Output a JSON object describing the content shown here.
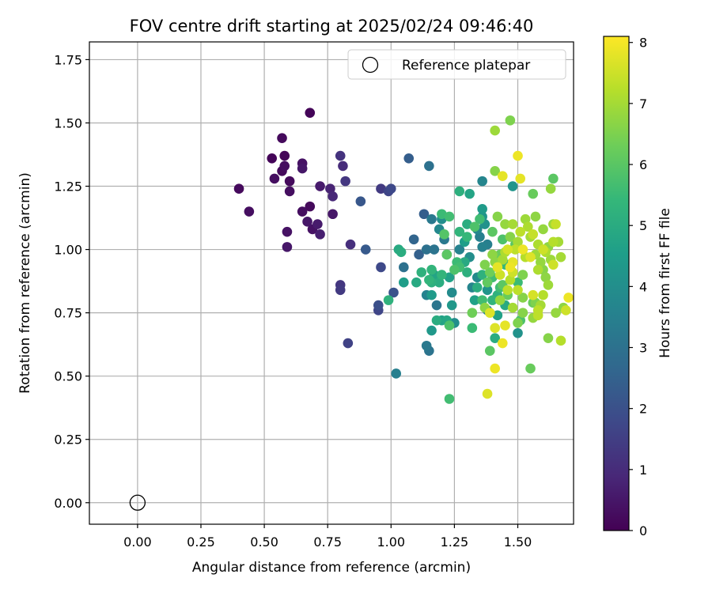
{
  "chart_data": {
    "type": "scatter",
    "title": "FOV centre drift starting at 2025/02/24 09:46:40",
    "xlabel": "Angular distance from reference (arcmin)",
    "ylabel": "Rotation from reference (arcmin)",
    "xlim": [
      -0.19,
      1.72
    ],
    "ylim": [
      -0.085,
      1.82
    ],
    "xticks": [
      "0.00",
      "0.25",
      "0.50",
      "0.75",
      "1.00",
      "1.25",
      "1.50"
    ],
    "yticks": [
      "0.00",
      "0.25",
      "0.50",
      "0.75",
      "1.00",
      "1.25",
      "1.50",
      "1.75"
    ],
    "grid": true,
    "legend": {
      "placement": "top-right",
      "entries": [
        "Reference platepar"
      ]
    },
    "reference_point": {
      "label": "Reference platepar",
      "x": 0.0,
      "y": 0.0,
      "marker": "open-circle"
    },
    "colorbar": {
      "label": "Hours from first FF file",
      "min": 0,
      "max": 8.1,
      "ticks": [
        "0",
        "1",
        "2",
        "3",
        "4",
        "5",
        "6",
        "7",
        "8"
      ],
      "colormap": "viridis",
      "colors": [
        "#440154",
        "#482878",
        "#3e4989",
        "#31688e",
        "#26828e",
        "#1f9e89",
        "#35b779",
        "#6ece58",
        "#b5de2b",
        "#fde725"
      ]
    },
    "series": [
      {
        "color_value": "hours",
        "points": [
          [
            0.4,
            1.24,
            0.2
          ],
          [
            0.44,
            1.15,
            0.3
          ],
          [
            0.57,
            1.44,
            0.2
          ],
          [
            0.53,
            1.36,
            0.1
          ],
          [
            0.58,
            1.37,
            0.1
          ],
          [
            0.58,
            1.33,
            0.3
          ],
          [
            0.57,
            1.31,
            0.2
          ],
          [
            0.6,
            1.27,
            0.2
          ],
          [
            0.54,
            1.28,
            0.3
          ],
          [
            0.6,
            1.23,
            0.3
          ],
          [
            0.65,
            1.34,
            0.4
          ],
          [
            0.65,
            1.32,
            0.5
          ],
          [
            0.68,
            1.54,
            0.1
          ],
          [
            0.72,
            1.25,
            0.6
          ],
          [
            0.76,
            1.24,
            0.8
          ],
          [
            0.77,
            1.21,
            0.9
          ],
          [
            0.65,
            1.15,
            0.3
          ],
          [
            0.68,
            1.17,
            0.2
          ],
          [
            0.67,
            1.11,
            0.5
          ],
          [
            0.69,
            1.08,
            0.4
          ],
          [
            0.71,
            1.1,
            0.6
          ],
          [
            0.72,
            1.06,
            0.7
          ],
          [
            0.77,
            1.14,
            0.5
          ],
          [
            0.59,
            1.07,
            0.4
          ],
          [
            0.59,
            1.01,
            0.5
          ],
          [
            0.8,
            1.37,
            1.2
          ],
          [
            0.81,
            1.33,
            1.0
          ],
          [
            0.82,
            1.27,
            1.3
          ],
          [
            0.84,
            1.02,
            1.1
          ],
          [
            0.8,
            0.86,
            1.3
          ],
          [
            0.8,
            0.84,
            1.4
          ],
          [
            0.83,
            0.63,
            1.6
          ],
          [
            0.88,
            1.19,
            2.2
          ],
          [
            0.9,
            1.0,
            2.3
          ],
          [
            0.96,
            1.24,
            1.4
          ],
          [
            0.99,
            1.23,
            1.7
          ],
          [
            1.0,
            1.24,
            1.8
          ],
          [
            0.96,
            0.93,
            1.8
          ],
          [
            0.95,
            0.78,
            2.0
          ],
          [
            0.95,
            0.76,
            1.7
          ],
          [
            1.01,
            0.83,
            2.1
          ],
          [
            1.02,
            0.51,
            3.5
          ],
          [
            1.03,
            1.0,
            4.9
          ],
          [
            1.04,
            0.99,
            5.0
          ],
          [
            1.05,
            0.93,
            3.0
          ],
          [
            1.07,
            1.36,
            2.4
          ],
          [
            1.09,
            1.04,
            2.6
          ],
          [
            1.11,
            0.98,
            2.5
          ],
          [
            1.13,
            1.14,
            2.4
          ],
          [
            1.14,
            1.0,
            3.0
          ],
          [
            1.15,
            1.33,
            3.0
          ],
          [
            1.16,
            1.12,
            3.3
          ],
          [
            1.17,
            1.0,
            3.1
          ],
          [
            1.18,
            0.78,
            3.2
          ],
          [
            1.19,
            1.08,
            3.8
          ],
          [
            1.2,
            1.12,
            4.0
          ],
          [
            1.21,
            1.04,
            3.3
          ],
          [
            1.22,
            0.98,
            3.6
          ],
          [
            1.14,
            0.82,
            3.6
          ],
          [
            1.15,
            0.6,
            3.1
          ],
          [
            1.14,
            0.62,
            3.3
          ],
          [
            1.16,
            0.68,
            4.3
          ],
          [
            1.2,
            0.72,
            4.6
          ],
          [
            1.22,
            0.72,
            4.8
          ],
          [
            1.25,
            0.71,
            4.0
          ],
          [
            1.24,
            0.83,
            3.9
          ],
          [
            1.24,
            0.78,
            4.3
          ],
          [
            1.23,
            0.89,
            4.6
          ],
          [
            1.26,
            0.95,
            5.5
          ],
          [
            1.27,
            1.0,
            3.6
          ],
          [
            1.27,
            1.23,
            5.1
          ],
          [
            1.29,
            0.95,
            4.9
          ],
          [
            1.29,
            1.03,
            4.5
          ],
          [
            1.3,
            1.1,
            5.0
          ],
          [
            1.31,
            1.22,
            4.7
          ],
          [
            1.31,
            0.97,
            4.0
          ],
          [
            1.32,
            0.85,
            3.7
          ],
          [
            1.32,
            0.69,
            5.5
          ],
          [
            1.34,
            0.89,
            3.9
          ],
          [
            1.34,
            1.08,
            3.8
          ],
          [
            1.35,
            1.05,
            3.5
          ],
          [
            1.36,
            1.01,
            3.6
          ],
          [
            1.36,
            1.27,
            3.7
          ],
          [
            1.36,
            1.16,
            4.4
          ],
          [
            1.36,
            1.13,
            4.2
          ],
          [
            1.37,
            1.1,
            4.1
          ],
          [
            1.38,
            1.02,
            3.5
          ],
          [
            1.38,
            0.84,
            4.2
          ],
          [
            1.38,
            0.76,
            3.5
          ],
          [
            1.39,
            0.6,
            6.0
          ],
          [
            1.4,
            0.89,
            5.6
          ],
          [
            1.4,
            0.8,
            5.3
          ],
          [
            1.41,
            0.65,
            5.0
          ],
          [
            1.42,
            0.74,
            4.6
          ],
          [
            1.42,
            0.82,
            5.2
          ],
          [
            1.43,
            0.85,
            5.6
          ],
          [
            1.44,
            0.86,
            6.0
          ],
          [
            1.45,
            0.78,
            4.9
          ],
          [
            1.45,
            0.94,
            5.3
          ],
          [
            1.43,
            0.98,
            6.2
          ],
          [
            1.46,
            0.94,
            5.4
          ],
          [
            1.44,
            1.04,
            5.8
          ],
          [
            1.47,
            1.05,
            6.6
          ],
          [
            1.48,
            1.25,
            4.2
          ],
          [
            1.49,
            1.02,
            6.0
          ],
          [
            1.5,
            0.87,
            5.5
          ],
          [
            1.5,
            0.67,
            4.1
          ],
          [
            1.51,
            0.72,
            5.8
          ],
          [
            1.5,
            0.71,
            6.5
          ],
          [
            1.52,
            0.81,
            6.6
          ],
          [
            1.55,
            0.53,
            6.2
          ],
          [
            1.56,
            0.73,
            6.8
          ],
          [
            1.57,
            0.79,
            6.5
          ],
          [
            1.58,
            0.76,
            7.3
          ],
          [
            1.59,
            0.78,
            7.0
          ],
          [
            1.6,
            0.82,
            7.2
          ],
          [
            1.62,
            0.86,
            6.9
          ],
          [
            1.62,
            0.65,
            6.6
          ],
          [
            1.64,
            0.94,
            7.5
          ],
          [
            1.65,
            0.75,
            6.8
          ],
          [
            1.67,
            0.97,
            7.0
          ],
          [
            1.67,
            0.64,
            7.2
          ],
          [
            1.68,
            0.77,
            6.7
          ],
          [
            1.69,
            0.76,
            7.5
          ],
          [
            1.7,
            0.81,
            7.9
          ],
          [
            1.2,
            0.9,
            5.3
          ],
          [
            1.19,
            0.87,
            5.0
          ],
          [
            1.16,
            0.87,
            5.1
          ],
          [
            1.16,
            0.92,
            5.3
          ],
          [
            1.22,
            0.98,
            6.0
          ],
          [
            1.25,
            0.92,
            5.8
          ],
          [
            1.27,
            0.93,
            5.6
          ],
          [
            1.3,
            0.91,
            5.1
          ],
          [
            1.33,
            0.8,
            4.6
          ],
          [
            1.34,
            0.85,
            5.0
          ],
          [
            1.36,
            0.9,
            5.2
          ],
          [
            1.37,
            0.94,
            6.5
          ],
          [
            1.38,
            0.87,
            6.1
          ],
          [
            1.39,
            0.91,
            6.3
          ],
          [
            1.4,
            0.98,
            6.7
          ],
          [
            1.41,
            0.95,
            6.7
          ],
          [
            1.42,
            0.93,
            7.8
          ],
          [
            1.43,
            0.9,
            7.5
          ],
          [
            1.44,
            0.96,
            7.0
          ],
          [
            1.45,
            0.99,
            7.1
          ],
          [
            1.46,
            1.0,
            7.6
          ],
          [
            1.47,
            0.93,
            7.9
          ],
          [
            1.48,
            0.95,
            7.8
          ],
          [
            1.49,
            1.0,
            7.3
          ],
          [
            1.5,
            1.03,
            7.0
          ],
          [
            1.51,
            1.07,
            7.3
          ],
          [
            1.52,
            1.0,
            7.9
          ],
          [
            1.53,
            0.97,
            7.2
          ],
          [
            1.54,
            1.09,
            7.1
          ],
          [
            1.55,
            1.05,
            7.0
          ],
          [
            1.56,
            1.06,
            7.4
          ],
          [
            1.57,
            0.98,
            6.9
          ],
          [
            1.58,
            1.02,
            7.1
          ],
          [
            1.59,
            0.95,
            6.8
          ],
          [
            1.6,
            1.0,
            7.5
          ],
          [
            1.61,
            0.99,
            7.1
          ],
          [
            1.62,
            1.01,
            6.7
          ],
          [
            1.63,
            0.96,
            6.9
          ],
          [
            1.64,
            1.03,
            7.2
          ],
          [
            1.65,
            1.1,
            7.4
          ],
          [
            1.66,
            1.03,
            7.0
          ],
          [
            1.41,
            1.47,
            6.9
          ],
          [
            1.47,
            1.51,
            6.5
          ],
          [
            1.5,
            1.37,
            7.9
          ],
          [
            1.51,
            1.28,
            7.8
          ],
          [
            1.44,
            1.29,
            7.8
          ],
          [
            1.41,
            1.31,
            6.6
          ],
          [
            1.56,
            1.22,
            6.2
          ],
          [
            1.63,
            1.24,
            6.8
          ],
          [
            1.64,
            1.28,
            6.0
          ],
          [
            1.41,
            0.69,
            7.7
          ],
          [
            1.44,
            0.63,
            7.9
          ],
          [
            1.45,
            0.7,
            7.8
          ],
          [
            1.41,
            0.53,
            7.9
          ],
          [
            1.38,
            0.43,
            7.7
          ],
          [
            1.23,
            0.41,
            5.6
          ],
          [
            1.23,
            0.7,
            5.8
          ],
          [
            1.18,
            0.72,
            5.0
          ],
          [
            1.16,
            0.82,
            4.4
          ],
          [
            1.17,
            0.9,
            4.7
          ],
          [
            1.15,
            0.88,
            5.3
          ],
          [
            1.12,
            0.91,
            5.2
          ],
          [
            1.1,
            0.87,
            4.9
          ],
          [
            1.05,
            0.87,
            4.5
          ],
          [
            0.99,
            0.8,
            5.2
          ],
          [
            1.32,
            0.75,
            6.3
          ],
          [
            1.36,
            0.8,
            5.6
          ],
          [
            1.37,
            0.77,
            6.7
          ],
          [
            1.39,
            0.75,
            7.7
          ],
          [
            1.43,
            0.8,
            6.8
          ],
          [
            1.46,
            0.82,
            6.2
          ],
          [
            1.48,
            0.77,
            7.0
          ],
          [
            1.52,
            0.75,
            6.6
          ],
          [
            1.56,
            0.79,
            6.2
          ],
          [
            1.58,
            0.74,
            7.3
          ],
          [
            1.56,
            0.82,
            7.6
          ],
          [
            1.6,
            0.92,
            6.6
          ],
          [
            1.61,
            0.89,
            6.7
          ],
          [
            1.58,
            0.92,
            7.1
          ],
          [
            1.55,
            0.97,
            7.7
          ],
          [
            1.52,
            0.9,
            6.5
          ],
          [
            1.5,
            0.84,
            7.3
          ],
          [
            1.48,
            0.91,
            7.5
          ],
          [
            1.47,
            0.88,
            7.2
          ],
          [
            1.46,
            0.84,
            7.3
          ],
          [
            1.2,
            1.14,
            5.5
          ],
          [
            1.21,
            1.06,
            5.9
          ],
          [
            1.23,
            1.13,
            5.6
          ],
          [
            1.27,
            1.07,
            5.3
          ],
          [
            1.3,
            1.05,
            5.4
          ],
          [
            1.33,
            1.09,
            5.8
          ],
          [
            1.35,
            1.12,
            5.6
          ],
          [
            1.4,
            1.07,
            6.0
          ],
          [
            1.42,
            1.13,
            6.6
          ],
          [
            1.45,
            1.1,
            6.8
          ],
          [
            1.48,
            1.1,
            7.0
          ],
          [
            1.53,
            1.12,
            6.9
          ],
          [
            1.57,
            1.13,
            6.7
          ],
          [
            1.6,
            1.08,
            6.8
          ],
          [
            1.64,
            1.1,
            6.9
          ]
        ]
      }
    ]
  }
}
